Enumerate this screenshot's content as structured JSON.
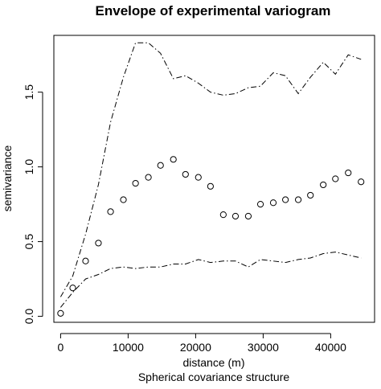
{
  "chart_data": {
    "type": "scatter",
    "title": "Envelope of experimental variogram",
    "xlabel": "distance (m)",
    "ylabel": "semivariance",
    "subtitle": "Spherical covariance structure",
    "xlim": [
      -1000,
      46500
    ],
    "ylim": [
      -0.04,
      1.88
    ],
    "x_ticks": [
      0,
      10000,
      20000,
      30000,
      40000
    ],
    "y_ticks": [
      0.0,
      0.5,
      1.0,
      1.5
    ],
    "x_tick_labels": [
      "0",
      "10000",
      "20000",
      "30000",
      "40000"
    ],
    "y_tick_labels": [
      "0.0",
      "0.5",
      "1.0",
      "1.5"
    ],
    "grid": false,
    "legend": "none",
    "series": [
      {
        "style": "points-open-circle",
        "x": [
          0,
          1800,
          3700,
          5600,
          7400,
          9300,
          11100,
          13000,
          14800,
          16700,
          18500,
          20400,
          22200,
          24100,
          25900,
          27800,
          29600,
          31500,
          33300,
          35200,
          37000,
          38900,
          40700,
          42600,
          44500
        ],
        "y": [
          0.02,
          0.19,
          0.37,
          0.49,
          0.7,
          0.78,
          0.89,
          0.93,
          1.01,
          1.05,
          0.95,
          0.93,
          0.87,
          0.68,
          0.67,
          0.67,
          0.75,
          0.76,
          0.78,
          0.78,
          0.81,
          0.88,
          0.92,
          0.96,
          0.9
        ]
      },
      {
        "style": "line-dash-dot-upper",
        "x": [
          0,
          1800,
          3700,
          5600,
          7400,
          9300,
          11100,
          13000,
          14800,
          16700,
          18500,
          20400,
          22200,
          24100,
          25900,
          27800,
          29600,
          31500,
          33300,
          35200,
          37000,
          38900,
          40700,
          42600,
          44500
        ],
        "y": [
          0.13,
          0.27,
          0.55,
          0.88,
          1.3,
          1.6,
          1.83,
          1.83,
          1.76,
          1.59,
          1.61,
          1.56,
          1.5,
          1.48,
          1.49,
          1.53,
          1.54,
          1.63,
          1.61,
          1.49,
          1.6,
          1.7,
          1.62,
          1.75,
          1.72
        ]
      },
      {
        "style": "line-dash-dot-lower",
        "x": [
          0,
          1800,
          3700,
          5600,
          7400,
          9300,
          11100,
          13000,
          14800,
          16700,
          18500,
          20400,
          22200,
          24100,
          25900,
          27800,
          29600,
          31500,
          33300,
          35200,
          37000,
          38900,
          40700,
          42600,
          44500
        ],
        "y": [
          0.06,
          0.16,
          0.25,
          0.28,
          0.32,
          0.33,
          0.32,
          0.33,
          0.33,
          0.35,
          0.35,
          0.38,
          0.36,
          0.37,
          0.37,
          0.33,
          0.38,
          0.37,
          0.36,
          0.38,
          0.39,
          0.42,
          0.43,
          0.41,
          0.39
        ]
      }
    ]
  }
}
